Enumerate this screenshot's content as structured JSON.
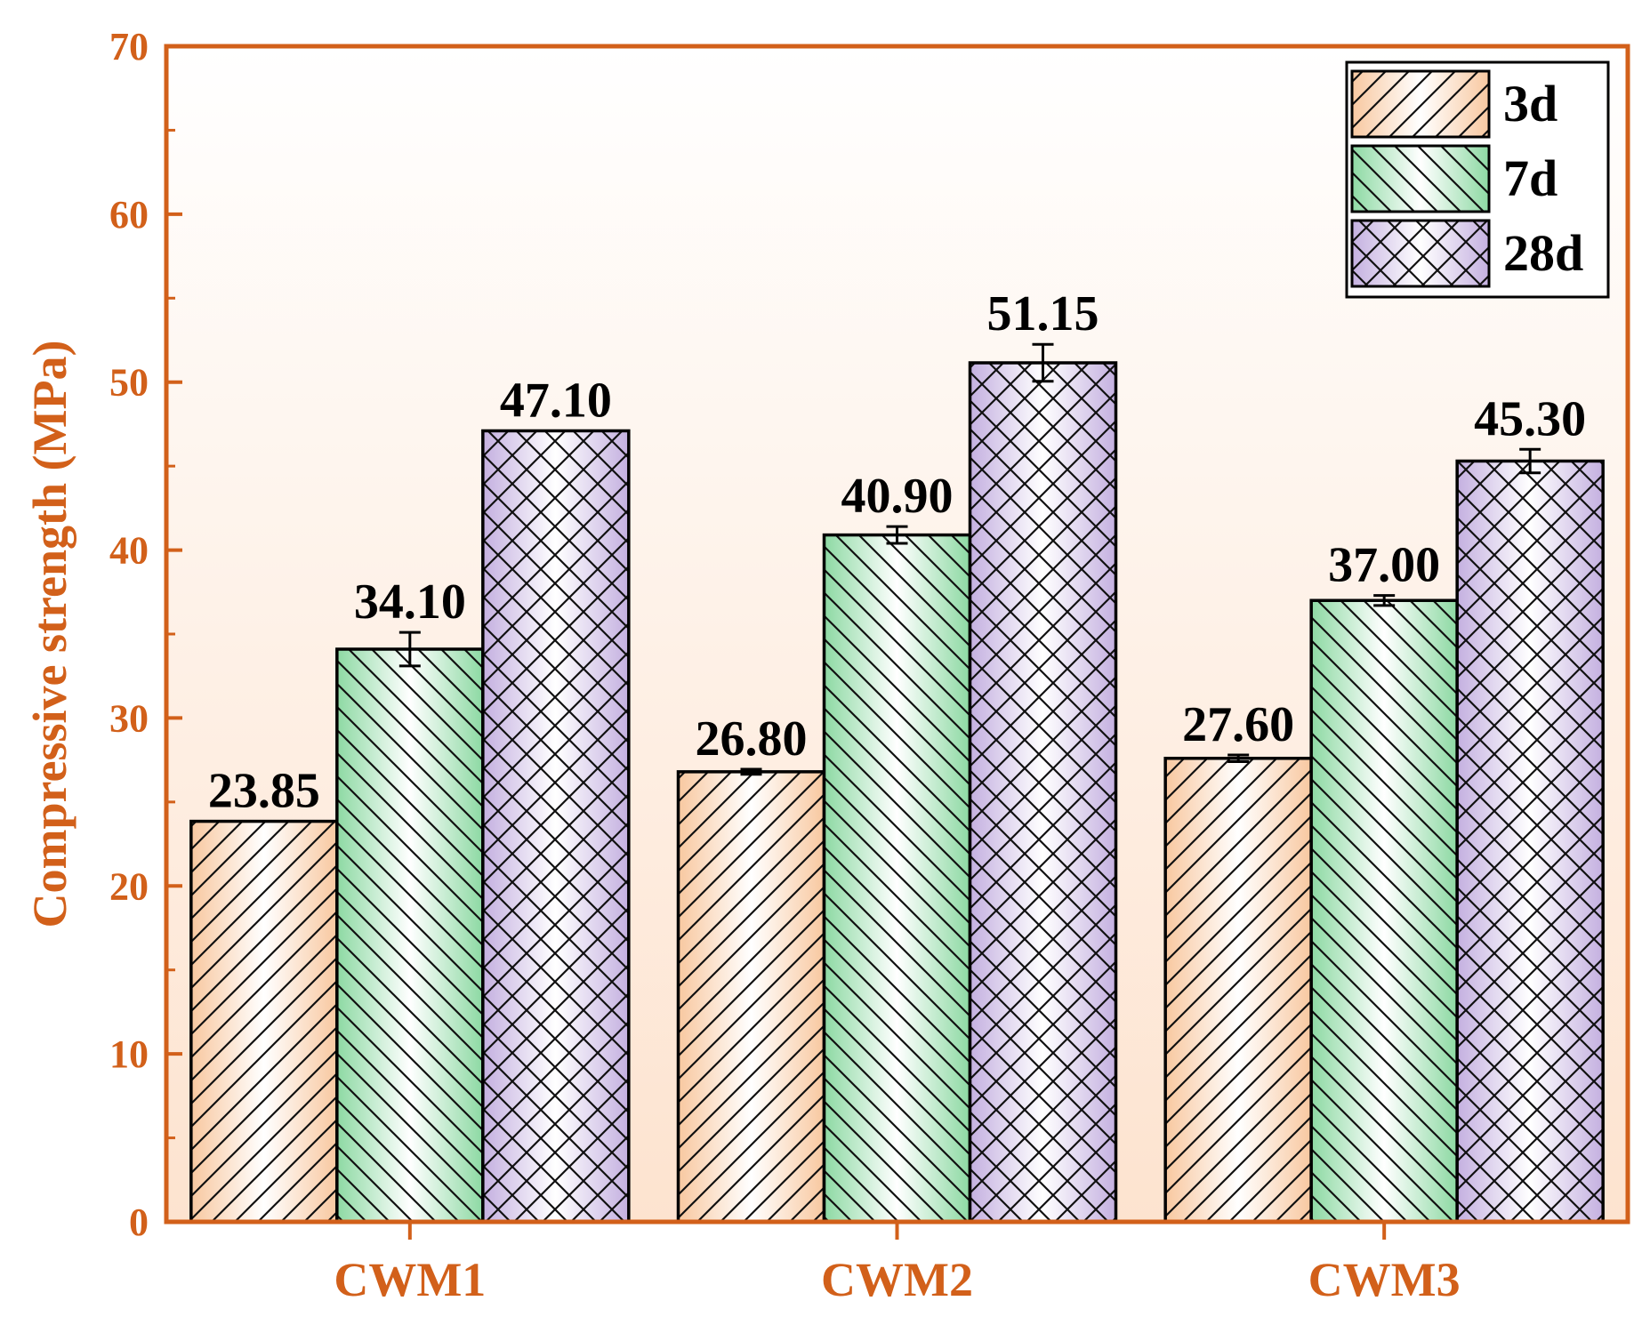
{
  "chart_data": {
    "type": "bar",
    "title": "",
    "xlabel": "",
    "ylabel": "Compressive strength (MPa)",
    "ylim": [
      0,
      70
    ],
    "yticks": [
      0,
      10,
      20,
      30,
      40,
      50,
      60,
      70
    ],
    "ytick_labels": [
      "0",
      "10",
      "20",
      "30",
      "40",
      "50",
      "60",
      "70"
    ],
    "categories": [
      "CWM1",
      "CWM2",
      "CWM3"
    ],
    "series": [
      {
        "name": "3d",
        "values": [
          23.85,
          26.8,
          27.6
        ],
        "labels": [
          "23.85",
          "26.80",
          "27.60"
        ],
        "errors": [
          0.0,
          0.15,
          0.2
        ],
        "color": "#f8c8a0",
        "pattern": "diag-up"
      },
      {
        "name": "7d",
        "values": [
          34.1,
          40.9,
          37.0
        ],
        "labels": [
          "34.10",
          "40.90",
          "37.00"
        ],
        "errors": [
          1.0,
          0.5,
          0.3
        ],
        "color": "#8dd9a3",
        "pattern": "diag-down"
      },
      {
        "name": "28d",
        "values": [
          47.1,
          51.15,
          45.3
        ],
        "labels": [
          "47.10",
          "51.15",
          "45.30"
        ],
        "errors": [
          0.0,
          1.1,
          0.7
        ],
        "color": "#c4b0e0",
        "pattern": "cross"
      }
    ],
    "legend_position": "top-right",
    "grid": false,
    "axis_color": "#d2601a",
    "background_top": "#ffffff",
    "background_bottom": "#fde3cf"
  }
}
